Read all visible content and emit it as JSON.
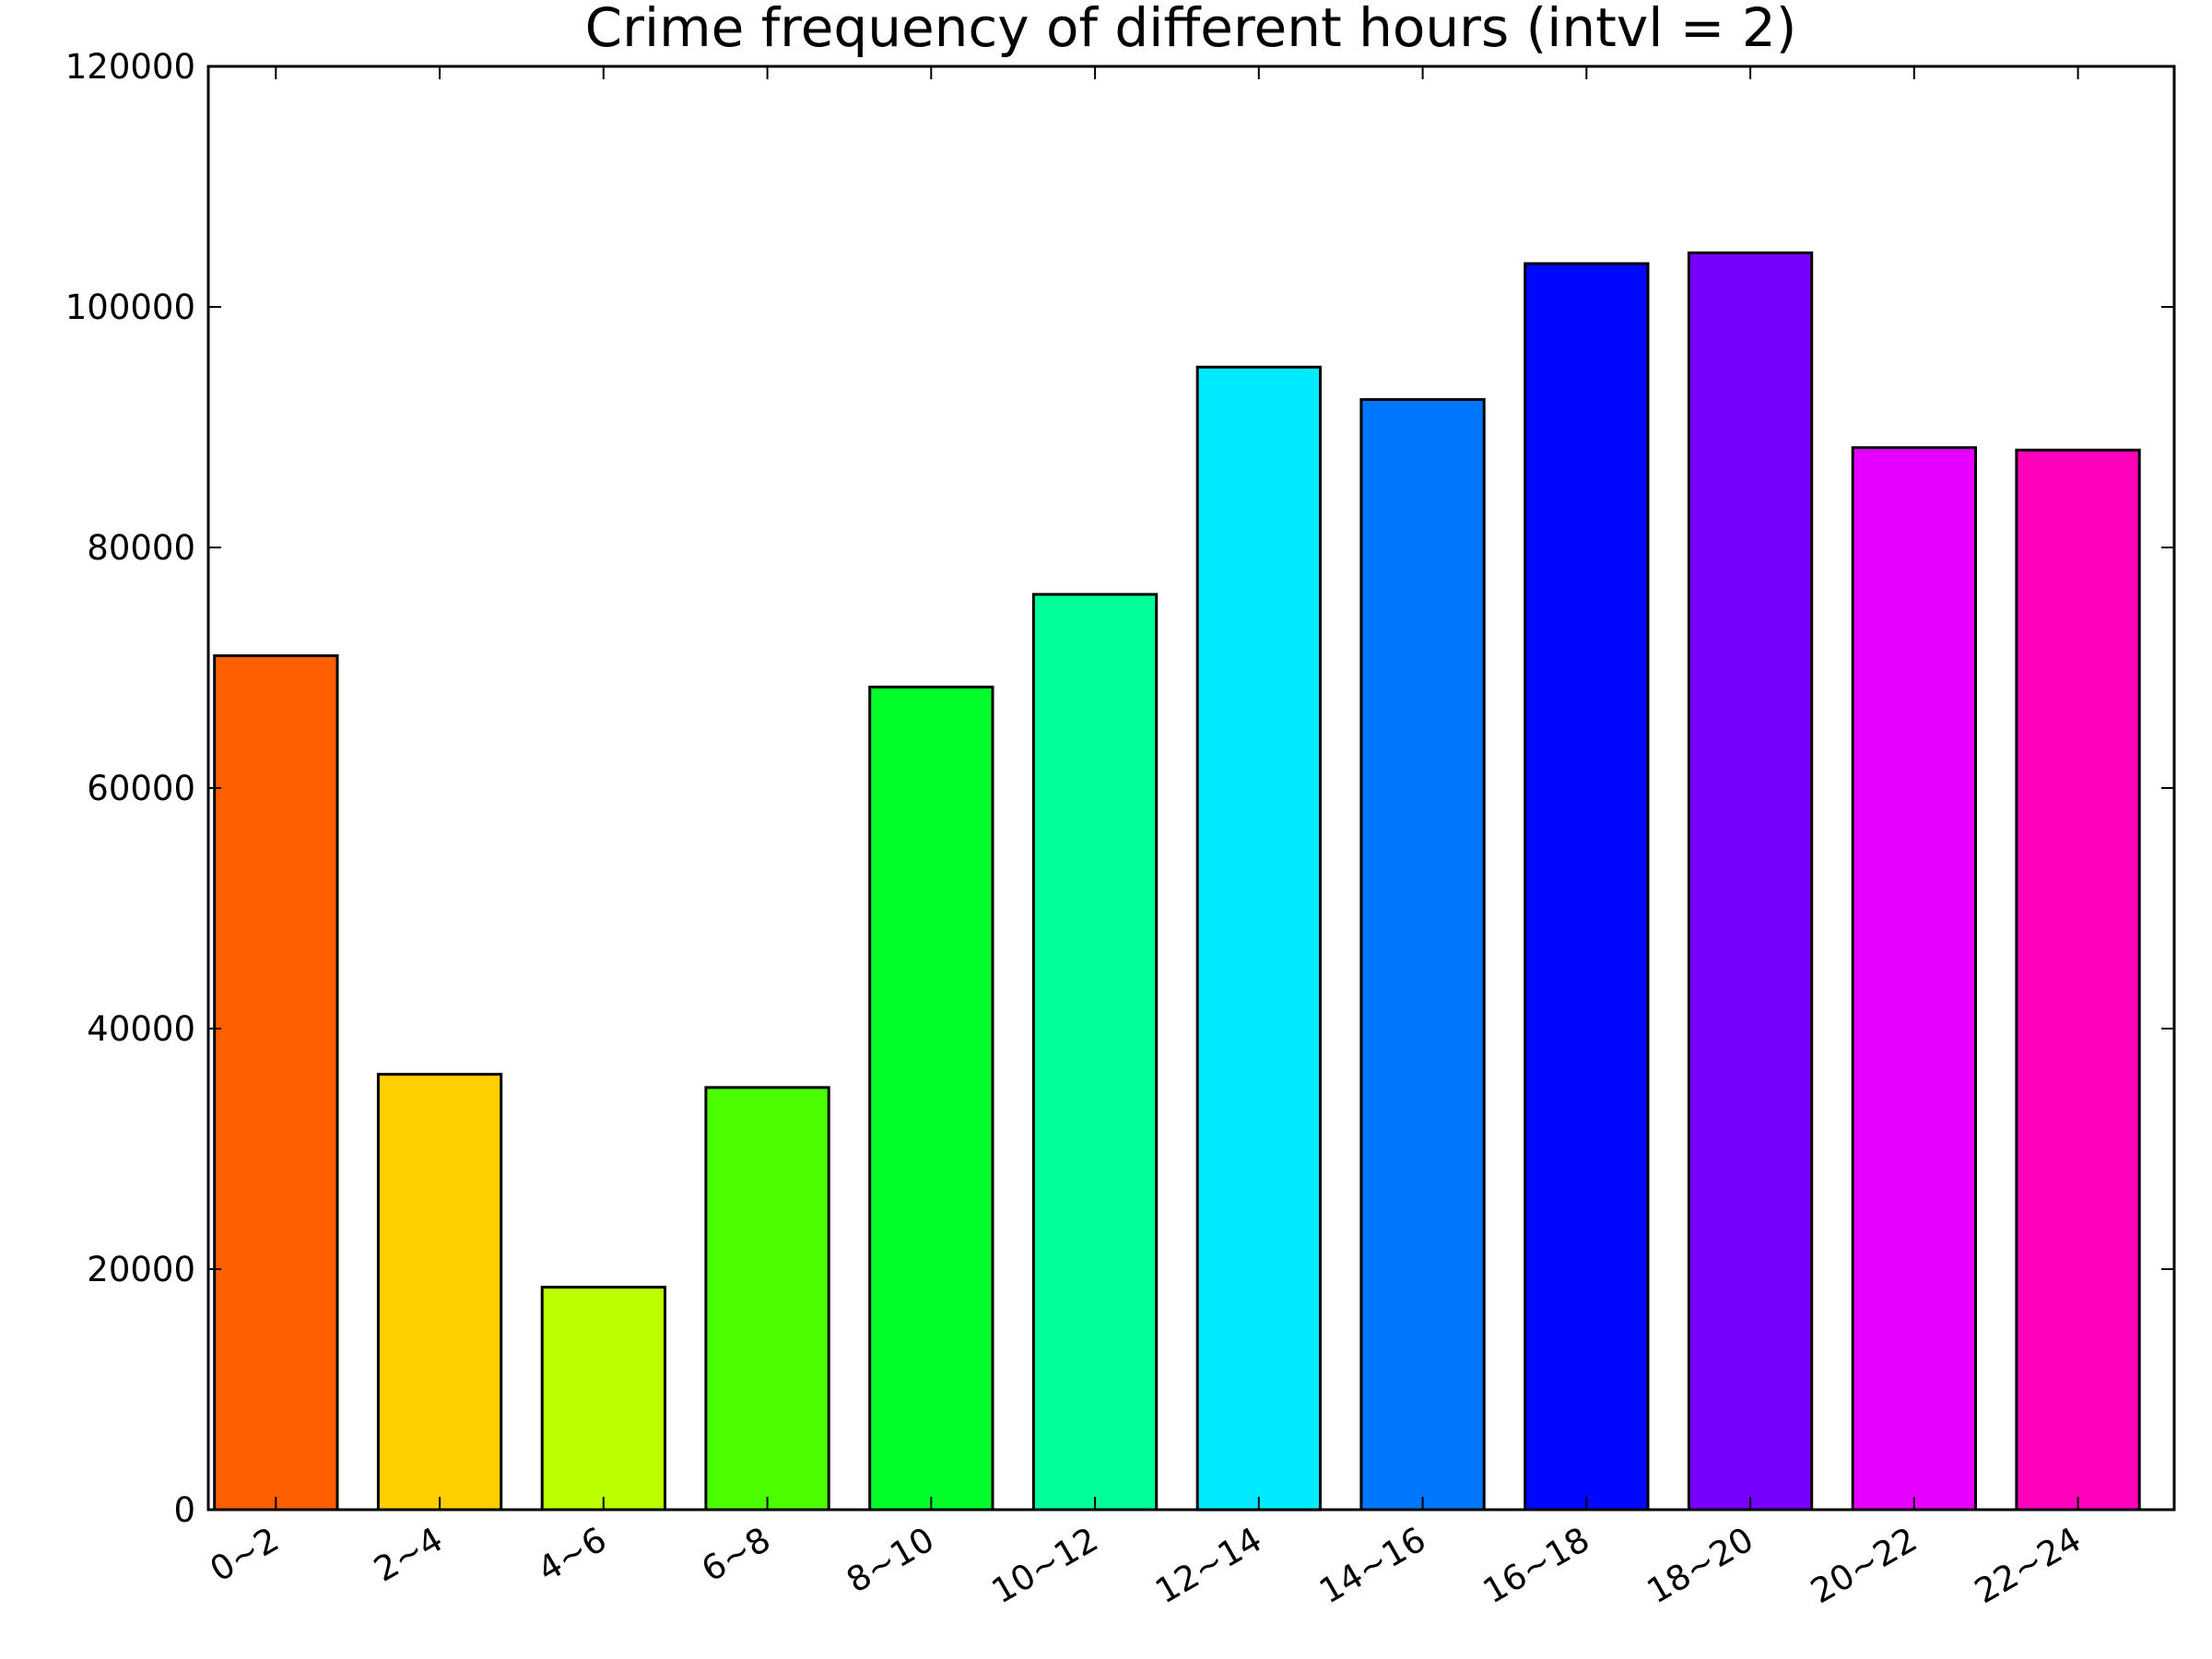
{
  "chart_data": {
    "type": "bar",
    "title": "Crime frequency of different hours (intvl = 2)",
    "xlabel": "",
    "ylabel": "",
    "categories": [
      "0~2",
      "2~4",
      "4~6",
      "6~8",
      "8~10",
      "10~12",
      "12~14",
      "14~16",
      "16~18",
      "18~20",
      "20~22",
      "22~24"
    ],
    "values": [
      71000,
      36200,
      18500,
      35100,
      68400,
      76100,
      95000,
      92300,
      103600,
      104500,
      88300,
      88100
    ],
    "colors": [
      "#ff5f00",
      "#ffcf00",
      "#bbff00",
      "#4cff00",
      "#00ff2a",
      "#00ff99",
      "#00eaff",
      "#0077ff",
      "#0007ff",
      "#7700ff",
      "#e600ff",
      "#ff00bb"
    ],
    "ylim": [
      0,
      120000
    ],
    "yticks": [
      "0",
      "20000",
      "40000",
      "60000",
      "80000",
      "100000",
      "120000"
    ],
    "ytick_values": [
      0,
      20000,
      40000,
      60000,
      80000,
      100000,
      120000
    ],
    "grid": false,
    "legend": "none"
  }
}
